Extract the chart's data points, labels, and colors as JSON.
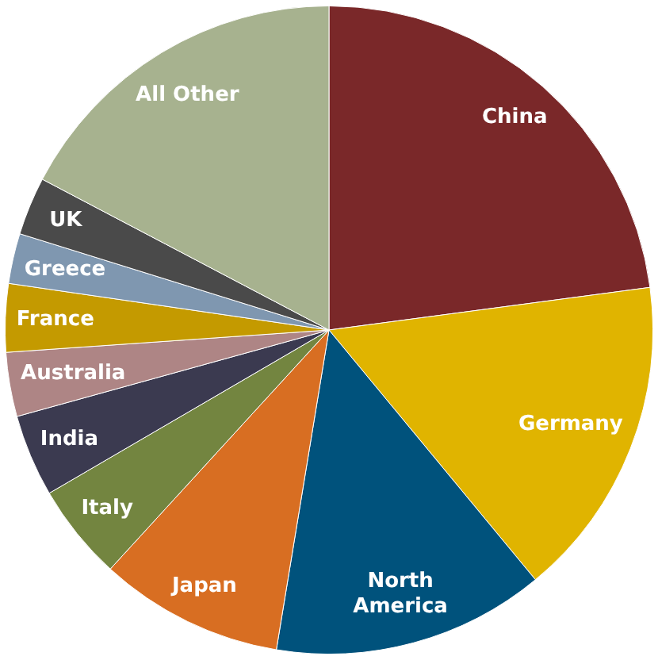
{
  "chart_data": {
    "type": "pie",
    "categories": [
      "China",
      "Germany",
      "North America",
      "Japan",
      "Italy",
      "India",
      "Australia",
      "France",
      "Greece",
      "UK",
      "All Other"
    ],
    "values": [
      22.9,
      16.1,
      13.6,
      9.2,
      4.8,
      4.1,
      3.2,
      3.4,
      2.5,
      2.9,
      17.3
    ],
    "colors": [
      "#7a2829",
      "#e0b400",
      "#00527c",
      "#d86e22",
      "#738540",
      "#3b3a50",
      "#ae8585",
      "#c49a00",
      "#7f97b0",
      "#4a4a4a",
      "#a7b28f"
    ],
    "legend": false
  }
}
